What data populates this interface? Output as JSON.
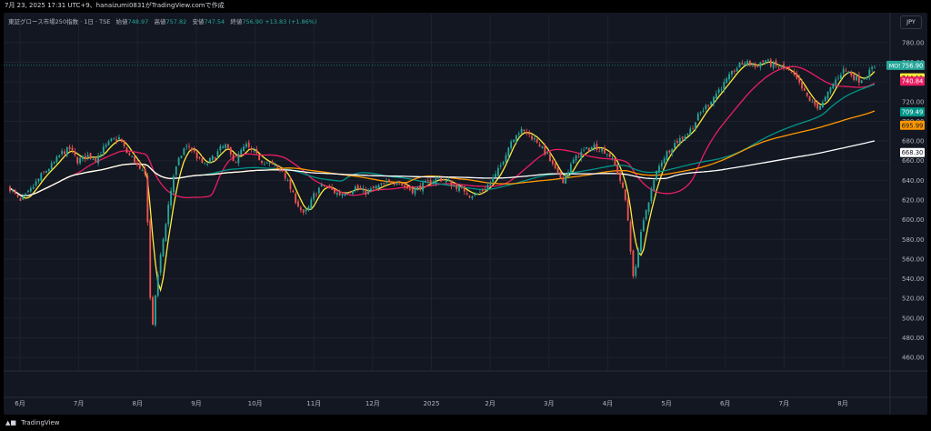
{
  "header": {
    "snapshot_info": "7月 23, 2025 17:31 UTC+9、hanaizumi0831がTradingView.comで作成"
  },
  "legend": {
    "symbol": "東証グロース市場250指数 · 1日 · TSE",
    "open_label": "始値",
    "open_value": "748.97",
    "high_label": "高値",
    "high_value": "757.82",
    "low_label": "安値",
    "low_value": "747.54",
    "close_label": "終値",
    "close_value": "756.90",
    "change": "+13.83 (+1.86%)"
  },
  "currency_button": "JPY",
  "footer": {
    "brand": "TradingView"
  },
  "colors": {
    "background": "#131722",
    "up": "#26a69a",
    "down": "#ef5350",
    "ma_yellow": "#ffeb3b",
    "ma_pink": "#e91e63",
    "ma_teal": "#009688",
    "ma_orange": "#ff9800",
    "ma_white": "#ffffff"
  },
  "chart_data": {
    "type": "line",
    "chart_type": "candlestick",
    "x_labels": [
      "6月",
      "7月",
      "8月",
      "9月",
      "10月",
      "11月",
      "12月",
      "2025",
      "2月",
      "3月",
      "4月",
      "5月",
      "6月",
      "7月",
      "8月"
    ],
    "y_ticks": [
      460,
      480,
      500,
      520,
      540,
      560,
      580,
      600,
      620,
      640,
      660,
      680,
      700,
      720,
      740,
      760,
      780
    ],
    "ylim": [
      450,
      790
    ],
    "grid": true,
    "price_tags": [
      {
        "label": "MOS",
        "value": "756.90",
        "color": "#26a69a"
      },
      {
        "label": "",
        "value": "744.11",
        "color": "#ffeb3b"
      },
      {
        "label": "",
        "value": "740.84",
        "color": "#e91e63"
      },
      {
        "label": "",
        "value": "709.49",
        "color": "#009688"
      },
      {
        "label": "",
        "value": "695.99",
        "color": "#ff9800"
      },
      {
        "label": "",
        "value": "668.30",
        "color": "#ffffff"
      }
    ],
    "price_anchors": [
      [
        0,
        632
      ],
      [
        4,
        618
      ],
      [
        8,
        630
      ],
      [
        12,
        645
      ],
      [
        16,
        655
      ],
      [
        20,
        668
      ],
      [
        23,
        672
      ],
      [
        26,
        660
      ],
      [
        30,
        665
      ],
      [
        33,
        662
      ],
      [
        36,
        672
      ],
      [
        39,
        680
      ],
      [
        42,
        683
      ],
      [
        45,
        668
      ],
      [
        48,
        660
      ],
      [
        50,
        650
      ],
      [
        52,
        645
      ],
      [
        53,
        600
      ],
      [
        54,
        520
      ],
      [
        55,
        495
      ],
      [
        57,
        545
      ],
      [
        59,
        580
      ],
      [
        61,
        615
      ],
      [
        63,
        645
      ],
      [
        65,
        660
      ],
      [
        67,
        672
      ],
      [
        69,
        675
      ],
      [
        71,
        668
      ],
      [
        73,
        660
      ],
      [
        75,
        655
      ],
      [
        77,
        660
      ],
      [
        79,
        665
      ],
      [
        81,
        672
      ],
      [
        83,
        675
      ],
      [
        85,
        665
      ],
      [
        87,
        660
      ],
      [
        89,
        670
      ],
      [
        91,
        675
      ],
      [
        93,
        670
      ],
      [
        95,
        665
      ],
      [
        97,
        660
      ],
      [
        99,
        658
      ],
      [
        101,
        655
      ],
      [
        103,
        652
      ],
      [
        105,
        650
      ],
      [
        107,
        638
      ],
      [
        109,
        625
      ],
      [
        111,
        615
      ],
      [
        113,
        605
      ],
      [
        115,
        612
      ],
      [
        117,
        625
      ],
      [
        119,
        632
      ],
      [
        121,
        635
      ],
      [
        123,
        632
      ],
      [
        125,
        628
      ],
      [
        127,
        626
      ],
      [
        129,
        628
      ],
      [
        131,
        630
      ],
      [
        133,
        633
      ],
      [
        135,
        630
      ],
      [
        137,
        628
      ],
      [
        139,
        630
      ],
      [
        141,
        633
      ],
      [
        143,
        635
      ],
      [
        145,
        637
      ],
      [
        147,
        638
      ],
      [
        149,
        640
      ],
      [
        151,
        635
      ],
      [
        153,
        632
      ],
      [
        155,
        630
      ],
      [
        157,
        632
      ],
      [
        159,
        635
      ],
      [
        161,
        638
      ],
      [
        163,
        640
      ],
      [
        165,
        642
      ],
      [
        167,
        640
      ],
      [
        169,
        638
      ],
      [
        171,
        635
      ],
      [
        173,
        632
      ],
      [
        175,
        630
      ],
      [
        177,
        625
      ],
      [
        179,
        625
      ],
      [
        181,
        628
      ],
      [
        183,
        632
      ],
      [
        185,
        638
      ],
      [
        187,
        645
      ],
      [
        189,
        655
      ],
      [
        191,
        668
      ],
      [
        193,
        680
      ],
      [
        195,
        688
      ],
      [
        197,
        690
      ],
      [
        199,
        688
      ],
      [
        201,
        684
      ],
      [
        203,
        680
      ],
      [
        205,
        672
      ],
      [
        207,
        665
      ],
      [
        209,
        655
      ],
      [
        211,
        645
      ],
      [
        213,
        640
      ],
      [
        215,
        650
      ],
      [
        217,
        660
      ],
      [
        219,
        666
      ],
      [
        221,
        670
      ],
      [
        223,
        672
      ],
      [
        225,
        675
      ],
      [
        227,
        672
      ],
      [
        229,
        670
      ],
      [
        231,
        665
      ],
      [
        233,
        655
      ],
      [
        235,
        640
      ],
      [
        237,
        620
      ],
      [
        238,
        600
      ],
      [
        239,
        570
      ],
      [
        240,
        540
      ],
      [
        241,
        555
      ],
      [
        243,
        585
      ],
      [
        245,
        610
      ],
      [
        247,
        630
      ],
      [
        249,
        648
      ],
      [
        251,
        660
      ],
      [
        253,
        668
      ],
      [
        255,
        675
      ],
      [
        257,
        680
      ],
      [
        259,
        684
      ],
      [
        261,
        688
      ],
      [
        263,
        695
      ],
      [
        265,
        705
      ],
      [
        267,
        712
      ],
      [
        269,
        718
      ],
      [
        271,
        725
      ],
      [
        273,
        732
      ],
      [
        275,
        738
      ],
      [
        277,
        745
      ],
      [
        279,
        752
      ],
      [
        281,
        757
      ],
      [
        283,
        760
      ],
      [
        285,
        758
      ],
      [
        287,
        755
      ],
      [
        289,
        760
      ],
      [
        291,
        762
      ],
      [
        293,
        758
      ],
      [
        295,
        756
      ],
      [
        297,
        755
      ],
      [
        299,
        752
      ],
      [
        301,
        748
      ],
      [
        303,
        742
      ],
      [
        305,
        733
      ],
      [
        307,
        725
      ],
      [
        309,
        718
      ],
      [
        311,
        715
      ],
      [
        313,
        718
      ],
      [
        315,
        728
      ],
      [
        317,
        738
      ],
      [
        319,
        746
      ],
      [
        321,
        752
      ],
      [
        323,
        750
      ],
      [
        325,
        745
      ],
      [
        327,
        742
      ],
      [
        329,
        745
      ],
      [
        331,
        750
      ],
      [
        333,
        757
      ]
    ],
    "series": [
      {
        "name": "",
        "color": "#ffeb3b",
        "period": 5
      },
      {
        "name": "",
        "color": "#e91e63",
        "period": 25
      },
      {
        "name": "",
        "color": "#009688",
        "period": 75
      },
      {
        "name": "",
        "color": "#ff9800",
        "period": 100
      },
      {
        "name": "",
        "color": "#ffffff",
        "period": 200
      }
    ]
  }
}
